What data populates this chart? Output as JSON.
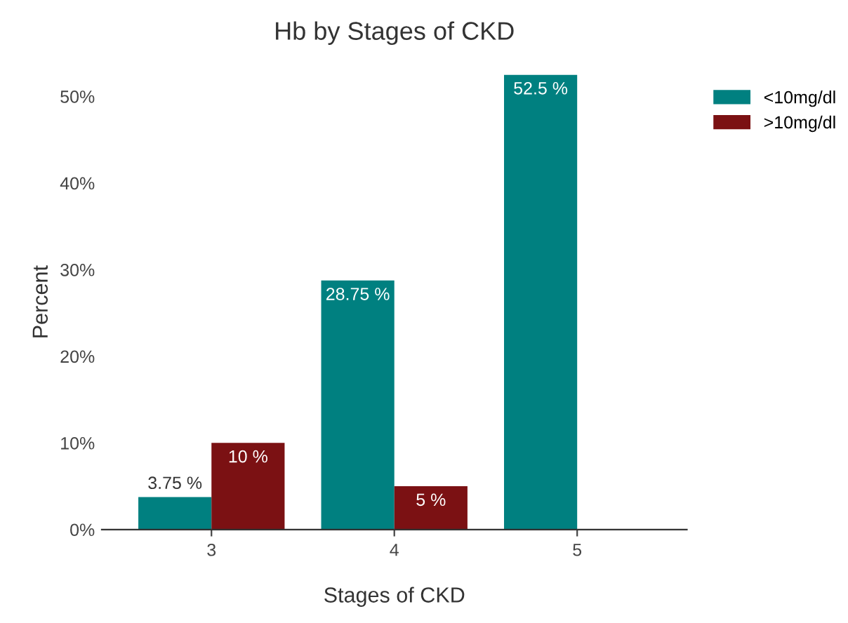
{
  "chart_data": {
    "type": "bar",
    "title": "Hb by Stages of CKD",
    "xlabel": "Stages of CKD",
    "ylabel": "Percent",
    "categories": [
      "3",
      "4",
      "5"
    ],
    "series": [
      {
        "name": "<10mg/dl",
        "color": "#008080",
        "values": [
          3.75,
          28.75,
          52.5
        ],
        "value_labels": [
          "3.75 %",
          "28.75 %",
          "52.5 %"
        ]
      },
      {
        "name": ">10mg/dl",
        "color": "#7b1113",
        "values": [
          10,
          5,
          null
        ],
        "value_labels": [
          "10 %",
          "5 %",
          null
        ]
      }
    ],
    "ylim": [
      0,
      52.5
    ],
    "yticks": [
      {
        "value": 0,
        "label": "0%"
      },
      {
        "value": 10,
        "label": "10%"
      },
      {
        "value": 20,
        "label": "20%"
      },
      {
        "value": 30,
        "label": "30%"
      },
      {
        "value": 40,
        "label": "40%"
      },
      {
        "value": 50,
        "label": "50%"
      }
    ],
    "grid": false,
    "legend": "top right"
  }
}
